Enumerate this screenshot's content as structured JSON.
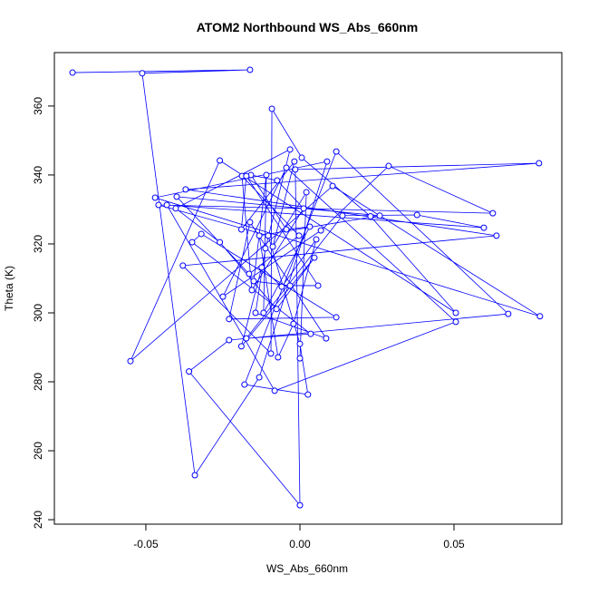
{
  "chart_data": {
    "type": "scatter-line",
    "title": "ATOM2 Northbound WS_Abs_660nm",
    "x_label": "WS_Abs_660nm",
    "y_label": "Theta (K)",
    "color": "#0000ff",
    "xlim": [
      -0.0797,
      0.085
    ],
    "ylim": [
      238.7,
      375.5
    ],
    "xticks": [
      -0.05,
      {
        "value": 0,
        "label": "0.00"
      },
      0.05
    ],
    "yticks": [
      240,
      260,
      280,
      300,
      320,
      340,
      360
    ],
    "x": [
      -0.0738,
      -0.0162,
      -0.0512,
      -0.0341,
      -0.0132,
      0.0088,
      -0.047,
      0.0779,
      0.0106,
      -0.055,
      -0.026,
      0.0506,
      0.0229,
      0.0006,
      -0.0091,
      -0.0094,
      -0.038,
      0.0638,
      -0.0371,
      0.0776,
      -0.0015,
      0.0,
      -0.036,
      -0.023,
      0.0676,
      0.0118,
      -0.018,
      0.0026,
      0.0,
      -0.0103,
      -0.0459,
      0.0626,
      0.0288,
      0.0068,
      -0.025,
      -0.0044,
      0.0506,
      -0.0082,
      -0.0432,
      0.0597,
      0.038,
      0.0138,
      -0.0174,
      0.0035,
      -0.035,
      -0.032,
      0.0118,
      -0.023,
      -0.0162,
      0.0085,
      -0.0144,
      -0.0112,
      -0.0032,
      -0.0403,
      -0.026,
      -0.0076,
      0.0047,
      -0.019,
      -0.0124,
      -0.0059,
      0.0053,
      -0.0021,
      -0.0071,
      -0.0132,
      0.0259,
      -0.04,
      -0.0165,
      -0.0003,
      -0.0188,
      -0.0156,
      0.0012,
      -0.0074,
      -0.0159,
      -0.0044,
      0.0032,
      -0.0118,
      -0.0109,
      -0.015,
      -0.0032,
      0.0059,
      -0.0174,
      -0.019,
      -0.0018,
      -0.0088,
      0.0021,
      0.0
    ],
    "y": [
      369.7,
      370.5,
      369.5,
      252.9,
      281.3,
      343.9,
      333.4,
      299.0,
      336.8,
      286.0,
      344.2,
      300.0,
      328.0,
      345.0,
      359.2,
      288.2,
      313.7,
      322.4,
      335.8,
      343.4,
      341.6,
      244.2,
      283.0,
      292.1,
      299.7,
      346.8,
      279.2,
      276.3,
      291.0,
      322.4,
      331.3,
      328.9,
      342.6,
      323.9,
      304.7,
      342.1,
      297.4,
      277.4,
      331.3,
      324.7,
      328.4,
      328.2,
      292.6,
      293.9,
      320.5,
      322.9,
      298.7,
      298.2,
      326.3,
      292.6,
      300.0,
      318.7,
      347.4,
      330.3,
      320.5,
      301.1,
      316.0,
      290.3,
      313.2,
      307.6,
      321.3,
      296.8,
      287.1,
      322.4,
      328.2,
      333.7,
      311.3,
      322.4,
      339.7,
      306.6,
      330.3,
      338.4,
      340.0,
      324.2,
      325.0,
      300.0,
      340.0,
      309.2,
      307.9,
      307.9,
      339.7,
      324.2,
      343.9,
      319.2,
      335.0,
      286.8
    ]
  }
}
